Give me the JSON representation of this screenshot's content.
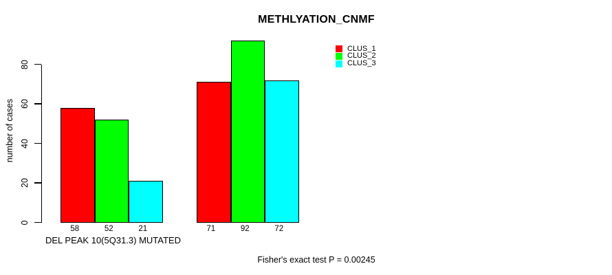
{
  "chart_data": {
    "type": "bar",
    "title": "METHLYATION_CNMF",
    "ylabel": "number of cases",
    "xlabel": "DEL PEAK 10(5Q31.3) MUTATED",
    "footer": "Fisher's exact test P = 0.00245",
    "yticks": [
      0,
      20,
      40,
      60,
      80
    ],
    "ylim": [
      0,
      92
    ],
    "grid": false,
    "legend_position": "top-right",
    "bar_value_labels_shown": true,
    "group_count": 2,
    "series": [
      {
        "name": "CLUS_1",
        "color": "#ff0000",
        "values": [
          58,
          71
        ]
      },
      {
        "name": "CLUS_2",
        "color": "#00ff00",
        "values": [
          52,
          92
        ]
      },
      {
        "name": "CLUS_3",
        "color": "#00ffff",
        "values": [
          21,
          72
        ]
      }
    ],
    "colors": {
      "axis": "#000000",
      "text": "#000000",
      "background": "#ffffff"
    }
  }
}
